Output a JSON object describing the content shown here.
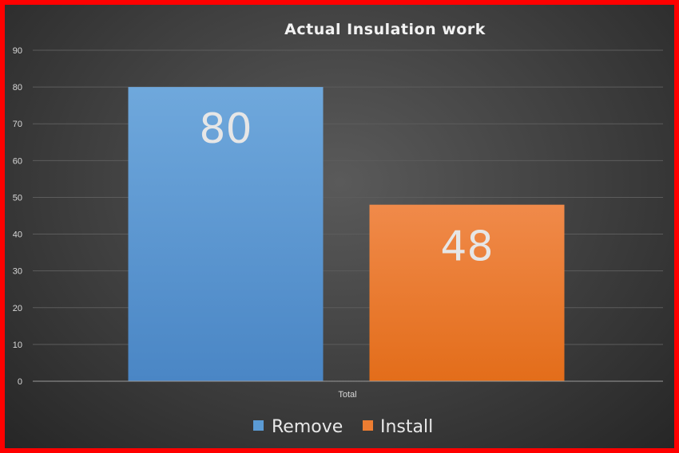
{
  "chart_data": {
    "type": "bar",
    "title": "Actual Insulation work",
    "categories": [
      "Total"
    ],
    "series": [
      {
        "name": "Remove",
        "values": [
          80
        ],
        "color": "#5b9bd5"
      },
      {
        "name": "Install",
        "values": [
          48
        ],
        "color": "#ed7d31"
      }
    ],
    "ylim": [
      0,
      90
    ],
    "yticks": [
      0,
      10,
      20,
      30,
      40,
      50,
      60,
      70,
      80,
      90
    ],
    "grid": true,
    "legend": "bottom",
    "data_labels": true
  },
  "colors": {
    "border": "#ff0000",
    "remove": "#5b9bd5",
    "install": "#ed7d31"
  }
}
